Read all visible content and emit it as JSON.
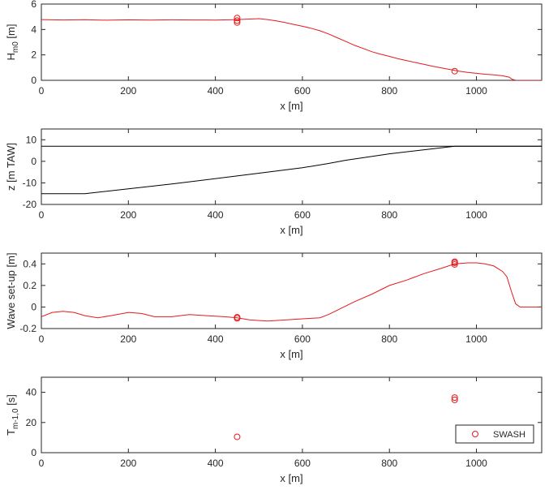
{
  "colors": {
    "series": "#e41a1c",
    "profile": "#000000",
    "axis": "#262626",
    "background": "#ffffff"
  },
  "chart_data": [
    {
      "id": "hm0",
      "type": "line",
      "xlabel": "x [m]",
      "ylabel_main": "H",
      "ylabel_sub": "m0",
      "ylabel_unit": " [m]",
      "xlim": [
        0,
        1150
      ],
      "ylim": [
        0,
        6
      ],
      "xticks": [
        0,
        200,
        400,
        600,
        800,
        1000
      ],
      "yticks": [
        0,
        2,
        4,
        6
      ],
      "grid": false,
      "series": [
        {
          "style": "line",
          "color": "#e41a1c",
          "x": [
            0,
            50,
            100,
            150,
            200,
            250,
            300,
            350,
            400,
            450,
            480,
            500,
            520,
            540,
            560,
            580,
            600,
            620,
            640,
            660,
            680,
            700,
            720,
            740,
            760,
            780,
            800,
            820,
            840,
            860,
            880,
            900,
            920,
            940,
            960,
            980,
            1000,
            1020,
            1040,
            1060,
            1075,
            1082,
            1090,
            1150
          ],
          "y": [
            4.78,
            4.75,
            4.77,
            4.73,
            4.76,
            4.74,
            4.76,
            4.75,
            4.74,
            4.78,
            4.82,
            4.85,
            4.78,
            4.68,
            4.55,
            4.4,
            4.25,
            4.1,
            3.9,
            3.65,
            3.35,
            3.05,
            2.75,
            2.5,
            2.25,
            2.05,
            1.88,
            1.7,
            1.55,
            1.4,
            1.25,
            1.1,
            0.97,
            0.85,
            0.72,
            0.62,
            0.55,
            0.48,
            0.43,
            0.36,
            0.25,
            0.08,
            0.0,
            0.0
          ]
        },
        {
          "style": "markers",
          "color": "#e41a1c",
          "x": [
            450,
            450,
            450,
            950
          ],
          "y": [
            4.9,
            4.7,
            4.55,
            0.72
          ]
        }
      ]
    },
    {
      "id": "bathymetry",
      "type": "line",
      "xlabel": "x [m]",
      "ylabel": "z [m TAW]",
      "xlim": [
        0,
        1150
      ],
      "ylim": [
        -20,
        15
      ],
      "xticks": [
        0,
        200,
        400,
        600,
        800,
        1000
      ],
      "yticks": [
        -20,
        -10,
        0,
        10
      ],
      "grid": false,
      "series": [
        {
          "style": "line",
          "color": "#000000",
          "x": [
            0,
            1150
          ],
          "y": [
            7,
            7
          ]
        },
        {
          "style": "line",
          "color": "#000000",
          "x": [
            0,
            100,
            300,
            500,
            600,
            660,
            700,
            800,
            900,
            950,
            1150
          ],
          "y": [
            -15,
            -15,
            -10.5,
            -5.5,
            -3,
            -1,
            0.5,
            3.5,
            5.8,
            7,
            7
          ]
        }
      ]
    },
    {
      "id": "setup",
      "type": "line",
      "xlabel": "x [m]",
      "ylabel": "Wave set-up [m]",
      "xlim": [
        0,
        1150
      ],
      "ylim": [
        -0.2,
        0.5
      ],
      "xticks": [
        0,
        200,
        400,
        600,
        800,
        1000
      ],
      "yticks": [
        -0.2,
        0,
        0.2,
        0.4
      ],
      "grid": false,
      "series": [
        {
          "style": "line",
          "color": "#e41a1c",
          "x": [
            0,
            25,
            50,
            75,
            100,
            130,
            160,
            200,
            230,
            260,
            300,
            340,
            380,
            420,
            450,
            480,
            520,
            560,
            600,
            640,
            660,
            680,
            700,
            720,
            760,
            800,
            840,
            880,
            920,
            950,
            980,
            1000,
            1020,
            1040,
            1060,
            1070,
            1080,
            1090,
            1100,
            1150
          ],
          "y": [
            -0.09,
            -0.05,
            -0.04,
            -0.05,
            -0.08,
            -0.1,
            -0.08,
            -0.05,
            -0.06,
            -0.09,
            -0.09,
            -0.07,
            -0.08,
            -0.09,
            -0.1,
            -0.12,
            -0.13,
            -0.12,
            -0.11,
            -0.1,
            -0.07,
            -0.03,
            0.01,
            0.05,
            0.12,
            0.2,
            0.25,
            0.31,
            0.36,
            0.4,
            0.41,
            0.41,
            0.4,
            0.38,
            0.33,
            0.28,
            0.15,
            0.03,
            0.0,
            0.0
          ]
        },
        {
          "style": "markers",
          "color": "#e41a1c",
          "x": [
            450,
            450,
            950,
            950,
            950
          ],
          "y": [
            -0.095,
            -0.105,
            0.42,
            0.41,
            0.395
          ]
        }
      ]
    },
    {
      "id": "tm10",
      "type": "scatter",
      "xlabel": "x [m]",
      "ylabel_main": "T",
      "ylabel_sub": "m-1,0",
      "ylabel_unit": " [s]",
      "xlim": [
        0,
        1150
      ],
      "ylim": [
        0,
        50
      ],
      "xticks": [
        0,
        200,
        400,
        600,
        800,
        1000
      ],
      "yticks": [
        0,
        20,
        40
      ],
      "grid": false,
      "legend": {
        "position": "bottom-right",
        "entries": [
          "SWASH"
        ]
      },
      "series": [
        {
          "name": "SWASH",
          "style": "markers",
          "color": "#e41a1c",
          "x": [
            450,
            950,
            950
          ],
          "y": [
            10.5,
            36.5,
            35.0
          ]
        }
      ]
    }
  ]
}
